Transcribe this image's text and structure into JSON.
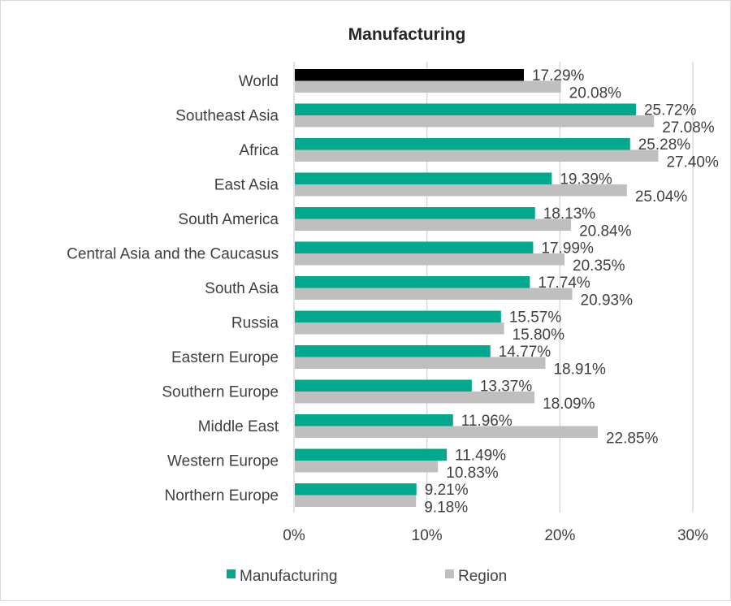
{
  "chart_data": {
    "type": "bar",
    "orientation": "horizontal",
    "title": "Manufacturing",
    "xlabel": "",
    "ylabel": "",
    "xlim": [
      0,
      30
    ],
    "x_ticks": [
      "0%",
      "10%",
      "20%",
      "30%"
    ],
    "grid": true,
    "legend_position": "bottom",
    "categories": [
      "World",
      "Southeast Asia",
      "Africa",
      "East Asia",
      "South America",
      "Central Asia and the Caucasus",
      "South Asia",
      "Russia",
      "Eastern Europe",
      "Southern Europe",
      "Middle East",
      "Western Europe",
      "Northern Europe"
    ],
    "series": [
      {
        "name": "Manufacturing",
        "color": "#00A88E",
        "highlight_color": "#000000",
        "highlight_category": "World",
        "values": [
          17.29,
          25.72,
          25.28,
          19.39,
          18.13,
          17.99,
          17.74,
          15.57,
          14.77,
          13.37,
          11.96,
          11.49,
          9.21
        ],
        "labels": [
          "17.29%",
          "25.72%",
          "25.28%",
          "19.39%",
          "18.13%",
          "17.99%",
          "17.74%",
          "15.57%",
          "14.77%",
          "13.37%",
          "11.96%",
          "11.49%",
          "9.21%"
        ]
      },
      {
        "name": "Region",
        "color": "#BFBFBF",
        "values": [
          20.08,
          27.08,
          27.4,
          25.04,
          20.84,
          20.35,
          20.93,
          15.8,
          18.91,
          18.09,
          22.85,
          10.83,
          9.18
        ],
        "labels": [
          "20.08%",
          "27.08%",
          "27.40%",
          "25.04%",
          "20.84%",
          "20.35%",
          "20.93%",
          "15.80%",
          "18.91%",
          "18.09%",
          "22.85%",
          "10.83%",
          "9.18%"
        ]
      }
    ]
  }
}
